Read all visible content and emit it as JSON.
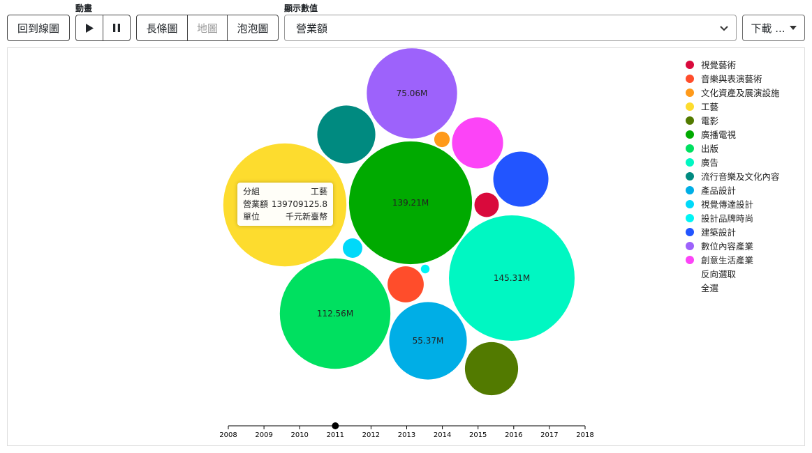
{
  "toolbar": {
    "back_label": "回到線圖",
    "animation_label": "動畫",
    "bar_label": "長條圖",
    "map_label": "地圖",
    "bubble_label": "泡泡圖",
    "display_label": "顯示數值",
    "display_value": "營業額",
    "download_label": "下載 ..."
  },
  "tooltip": {
    "rows": [
      {
        "key": "分組",
        "value": "工藝"
      },
      {
        "key": "營業額",
        "value": "139709125.8"
      },
      {
        "key": "單位",
        "value": "千元新臺幣"
      }
    ]
  },
  "legend": {
    "items": [
      {
        "label": "視覺藝術",
        "color": "#d90a3c"
      },
      {
        "label": "音樂與表演藝術",
        "color": "#ff4d2b"
      },
      {
        "label": "文化資產及展演設施",
        "color": "#ff9a1a"
      },
      {
        "label": "工藝",
        "color": "#fddc2e"
      },
      {
        "label": "電影",
        "color": "#527a00"
      },
      {
        "label": "廣播電視",
        "color": "#00aa00"
      },
      {
        "label": "出版",
        "color": "#00e060"
      },
      {
        "label": "廣告",
        "color": "#00f7c2"
      },
      {
        "label": "流行音樂及文化內容",
        "color": "#008a80"
      },
      {
        "label": "產品設計",
        "color": "#00aee6"
      },
      {
        "label": "視覺傳達設計",
        "color": "#00d9f9"
      },
      {
        "label": "設計品牌時尚",
        "color": "#00f5f5"
      },
      {
        "label": "建築設計",
        "color": "#2255ff"
      },
      {
        "label": "數位內容產業",
        "color": "#9d62fb"
      },
      {
        "label": "創意生活產業",
        "color": "#fc44f7"
      }
    ],
    "invert_label": "反向選取",
    "select_all_label": "全選"
  },
  "chart_data": {
    "type": "bubble",
    "year_axis": {
      "ticks": [
        "2008",
        "2009",
        "2010",
        "2011",
        "2012",
        "2013",
        "2014",
        "2015",
        "2016",
        "2017",
        "2018"
      ],
      "selected": "2011"
    },
    "series": [
      {
        "name": "廣告",
        "value": 145.31,
        "label": "145.31M"
      },
      {
        "name": "工藝",
        "value": 139.71,
        "label": ""
      },
      {
        "name": "廣播電視",
        "value": 139.21,
        "label": "139.21M"
      },
      {
        "name": "出版",
        "value": 112.56,
        "label": "112.56M"
      },
      {
        "name": "數位內容產業",
        "value": 75.06,
        "label": "75.06M"
      },
      {
        "name": "產品設計",
        "value": 55.37,
        "label": "55.37M"
      },
      {
        "name": "流行音樂及文化內容",
        "value": 31,
        "label": ""
      },
      {
        "name": "電影",
        "value": 26,
        "label": ""
      },
      {
        "name": "建築設計",
        "value": 28,
        "label": ""
      },
      {
        "name": "創意生活產業",
        "value": 24,
        "label": ""
      },
      {
        "name": "音樂與表演藝術",
        "value": 12,
        "label": ""
      },
      {
        "name": "視覺藝術",
        "value": 5.5,
        "label": ""
      },
      {
        "name": "視覺傳達設計",
        "value": 3.5,
        "label": ""
      },
      {
        "name": "文化資產及展演設施",
        "value": 2.2,
        "label": ""
      },
      {
        "name": "設計品牌時尚",
        "value": 0.7,
        "label": ""
      }
    ]
  }
}
